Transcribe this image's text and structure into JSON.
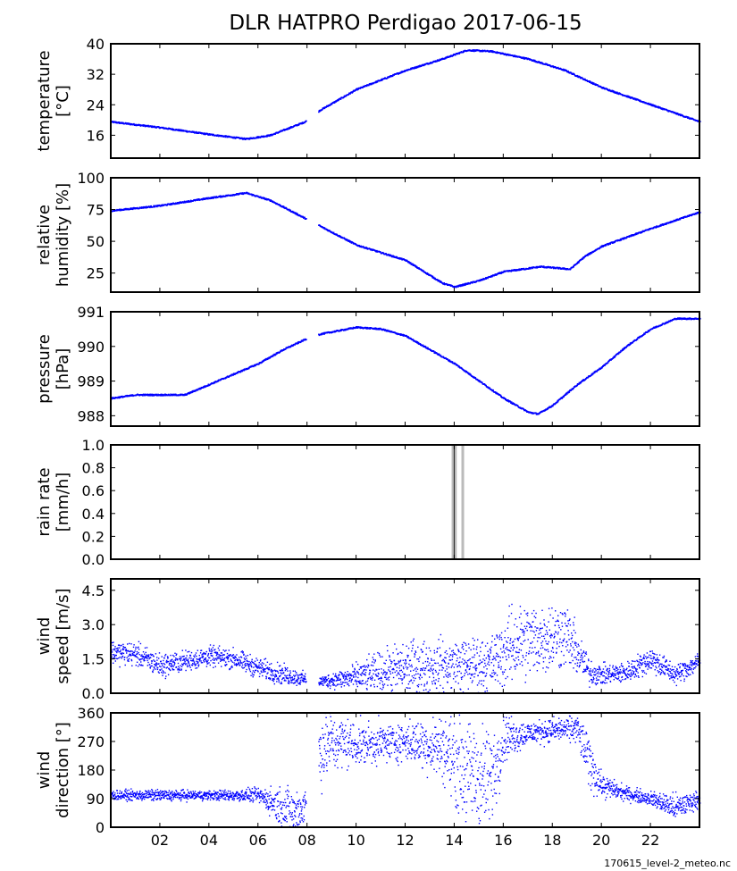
{
  "title": "DLR HATPRO  Perdigao  2017-06-15",
  "footer": "170615_level-2_meteo.nc",
  "x_ticks": [
    2,
    4,
    6,
    8,
    10,
    12,
    14,
    16,
    18,
    20,
    22
  ],
  "x_tick_labels": [
    "02",
    "04",
    "06",
    "08",
    "10",
    "12",
    "14",
    "16",
    "18",
    "20",
    "22"
  ],
  "x_range": [
    0,
    24
  ],
  "data_gap_hours": [
    7.95,
    8.45
  ],
  "colors": {
    "series": "#0000ff",
    "rain": "#bbbbbb",
    "rain_dark": "#222222",
    "axis": "#000000"
  },
  "chart_data": [
    {
      "name": "temperature",
      "type": "scatter",
      "ylabel_lines": [
        "temperature",
        "[°C]"
      ],
      "ylim": [
        10,
        40
      ],
      "yticks": [
        16,
        24,
        32,
        40
      ],
      "ytick_labels": [
        "16",
        "24",
        "32",
        "40"
      ],
      "x": [
        0,
        2,
        4,
        5.5,
        6.5,
        7.9,
        8.5,
        10,
        12,
        13.5,
        14.5,
        15.5,
        17,
        18.5,
        20,
        22,
        24
      ],
      "y": [
        19.5,
        18,
        16.2,
        15,
        16,
        19.5,
        22.5,
        28,
        33,
        36,
        38.3,
        38,
        36,
        33,
        28.5,
        24,
        19.5
      ]
    },
    {
      "name": "relative humidity",
      "type": "scatter",
      "ylabel_lines": [
        "relative",
        "humidity [%]"
      ],
      "ylim": [
        10,
        100
      ],
      "yticks": [
        25,
        50,
        75,
        100
      ],
      "ytick_labels": [
        "25",
        "50",
        "75",
        "100"
      ],
      "x": [
        0,
        2,
        4,
        5.5,
        6.5,
        7.9,
        8.5,
        10,
        12,
        13.5,
        14,
        15,
        16,
        17.5,
        18.7,
        19.3,
        20,
        22,
        24
      ],
      "y": [
        74,
        78,
        84,
        88,
        82,
        68,
        62,
        47,
        35,
        17,
        14,
        19,
        26,
        30,
        28,
        38,
        46,
        60,
        73
      ]
    },
    {
      "name": "pressure",
      "type": "scatter",
      "ylabel_lines": [
        "pressure",
        "[hPa]"
      ],
      "ylim": [
        987.7,
        991
      ],
      "yticks": [
        988,
        989,
        990,
        991
      ],
      "ytick_labels": [
        "988",
        "989",
        "990",
        "991"
      ],
      "x": [
        0,
        1,
        2,
        3,
        4,
        5,
        6,
        7,
        7.9,
        8.5,
        10,
        11,
        12,
        13,
        14,
        15,
        16,
        17,
        17.4,
        18,
        19,
        20,
        21,
        22,
        23,
        24
      ],
      "y": [
        988.5,
        988.6,
        988.6,
        988.6,
        988.9,
        989.2,
        989.5,
        989.9,
        990.2,
        990.35,
        990.55,
        990.5,
        990.3,
        989.9,
        989.5,
        989.0,
        988.5,
        988.1,
        988.05,
        988.3,
        988.9,
        989.4,
        990.0,
        990.5,
        990.8,
        990.8
      ]
    },
    {
      "name": "rain rate",
      "type": "bar",
      "ylabel_lines": [
        "rain rate",
        "[mm/h]"
      ],
      "ylim": [
        0,
        1.0
      ],
      "yticks": [
        0.0,
        0.2,
        0.4,
        0.6,
        0.8,
        1.0
      ],
      "ytick_labels": [
        "0.0",
        "0.2",
        "0.4",
        "0.6",
        "0.8",
        "1.0"
      ],
      "events": [
        {
          "x": 13.95,
          "value": 1.0,
          "shade": "light"
        },
        {
          "x": 14.05,
          "value": 1.0,
          "shade": "light"
        },
        {
          "x": 14.0,
          "value": 1.0,
          "shade": "dark"
        },
        {
          "x": 14.35,
          "value": 1.0,
          "shade": "light"
        }
      ]
    },
    {
      "name": "wind speed",
      "type": "scatter",
      "ylabel_lines": [
        "wind",
        "speed [m/s]"
      ],
      "ylim": [
        0,
        5.0
      ],
      "yticks": [
        0.0,
        1.5,
        3.0,
        4.5
      ],
      "ytick_labels": [
        "0.0",
        "1.5",
        "3.0",
        "4.5"
      ],
      "x": [
        0,
        1,
        2,
        3,
        4,
        5,
        6,
        7,
        7.9,
        8.5,
        10,
        12,
        14,
        15.5,
        16.5,
        17.5,
        18.5,
        19.5,
        20,
        21,
        22,
        23,
        24
      ],
      "y": [
        1.8,
        1.7,
        1.2,
        1.4,
        1.6,
        1.5,
        1.1,
        0.8,
        0.6,
        0.5,
        0.7,
        1.1,
        1.2,
        1.3,
        2.2,
        2.4,
        2.6,
        0.9,
        0.8,
        0.9,
        1.5,
        0.8,
        1.4
      ],
      "spread": [
        0.35,
        0.35,
        0.35,
        0.3,
        0.3,
        0.3,
        0.3,
        0.3,
        0.2,
        0.15,
        0.4,
        0.8,
        0.8,
        0.8,
        1.2,
        1.1,
        1.0,
        0.4,
        0.3,
        0.3,
        0.4,
        0.3,
        0.3
      ]
    },
    {
      "name": "wind direction",
      "type": "scatter",
      "ylabel_lines": [
        "wind",
        "direction [°]"
      ],
      "ylim": [
        0,
        360
      ],
      "yticks": [
        0,
        90,
        180,
        270,
        360
      ],
      "ytick_labels": [
        "0",
        "90",
        "180",
        "270",
        "360"
      ],
      "x": [
        0,
        2,
        4,
        6,
        6.8,
        7.5,
        7.9,
        8.5,
        9,
        10,
        12,
        13.5,
        14.5,
        15.5,
        16,
        17,
        18,
        19,
        19.5,
        20,
        21,
        22,
        23,
        24
      ],
      "y": [
        100,
        100,
        100,
        100,
        70,
        40,
        70,
        240,
        270,
        260,
        270,
        250,
        170,
        150,
        280,
        295,
        305,
        310,
        200,
        130,
        105,
        90,
        60,
        90
      ],
      "spread": [
        10,
        12,
        10,
        15,
        40,
        60,
        50,
        80,
        70,
        45,
        40,
        70,
        110,
        110,
        50,
        25,
        25,
        30,
        60,
        25,
        15,
        15,
        30,
        15
      ]
    }
  ]
}
